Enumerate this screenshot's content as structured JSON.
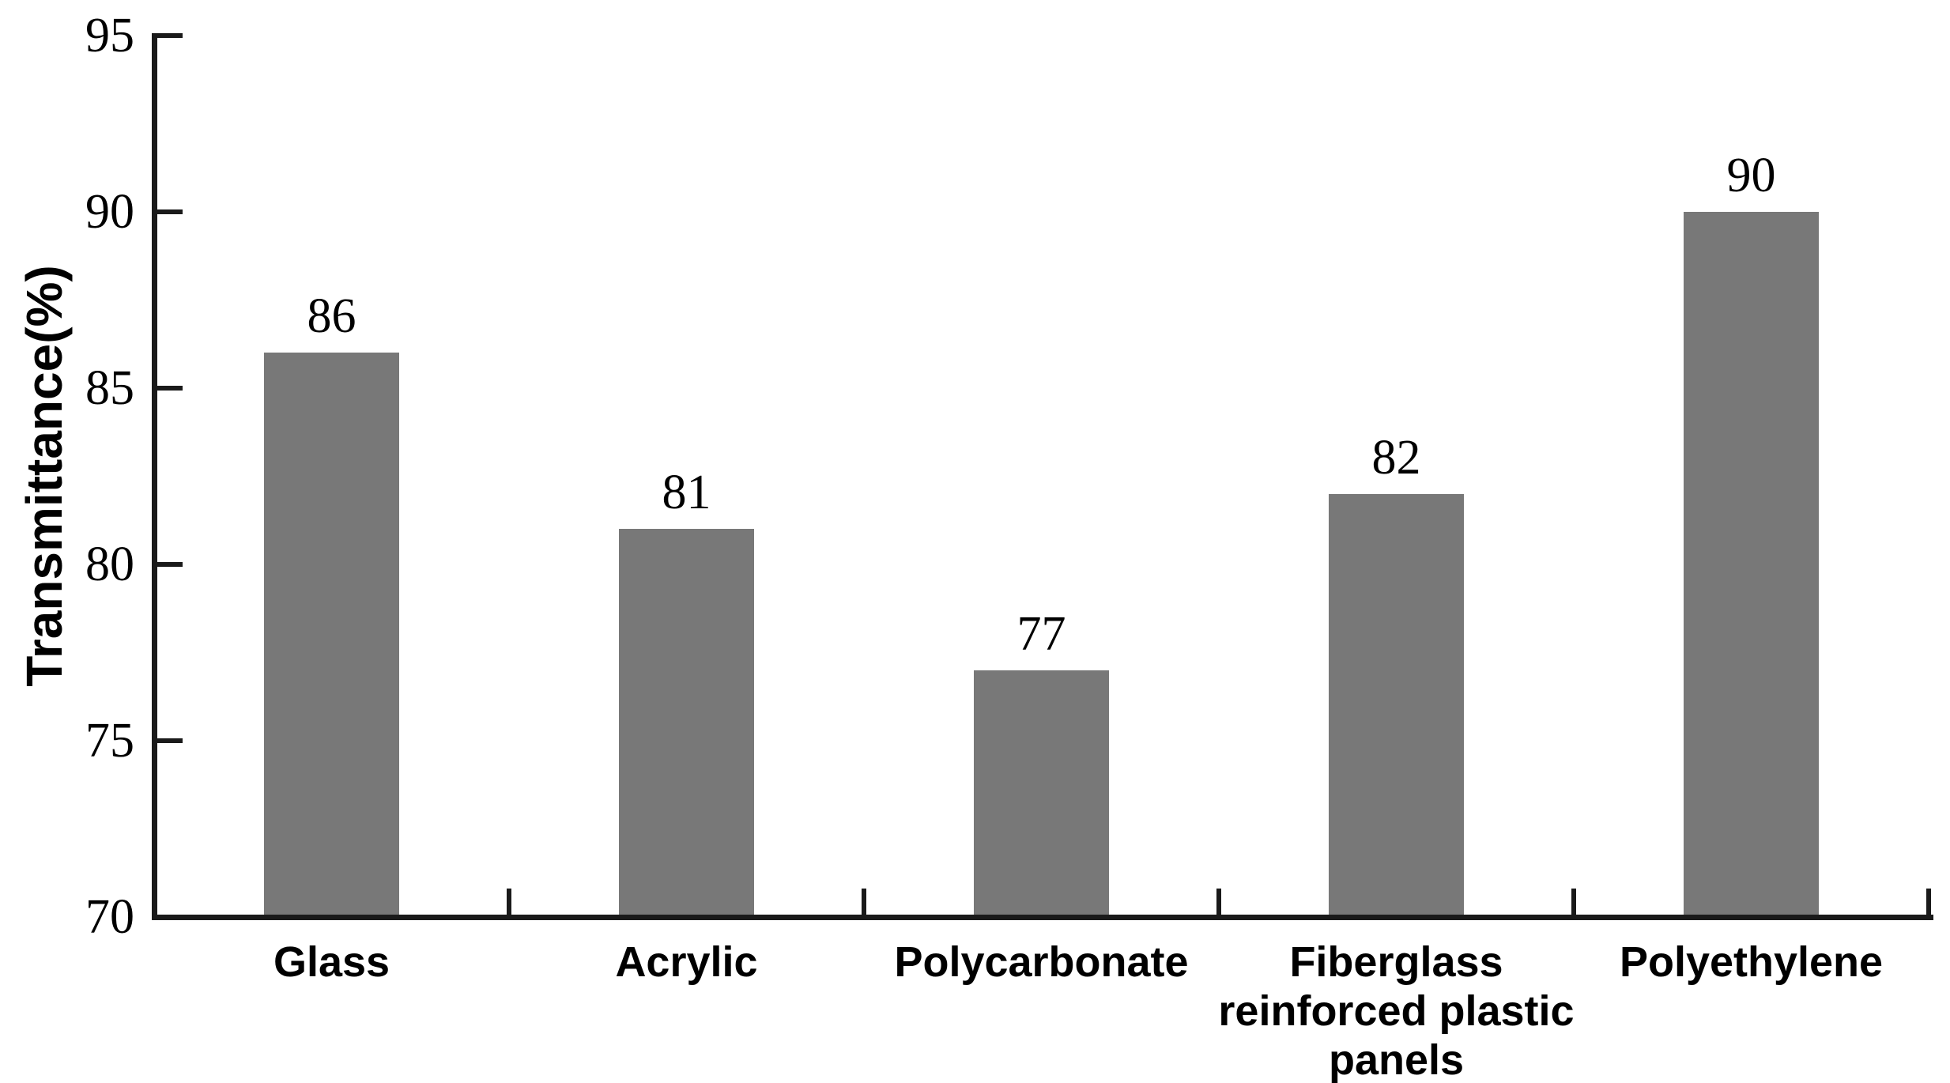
{
  "chart_data": {
    "type": "bar",
    "title": "",
    "xlabel": "",
    "ylabel": "Transmittance(%)",
    "categories": [
      "Glass",
      "Acrylic",
      "Polycarbonate",
      "Fiberglass\nreinforced plastic\npanels",
      "Polyethylene"
    ],
    "values": [
      86,
      81,
      77,
      82,
      90
    ],
    "data_labels": [
      "86",
      "81",
      "77",
      "82",
      "90"
    ],
    "ylim": [
      70,
      95
    ],
    "yticks": [
      70,
      75,
      80,
      85,
      90,
      95
    ],
    "ytick_labels": [
      "70",
      "75",
      "80",
      "85",
      "90",
      "95"
    ],
    "grid": false,
    "legend": "none",
    "bar_color": "#787878"
  },
  "colors": {
    "bar": "#787878",
    "axis": "#1a1a1a",
    "text": "#000000",
    "background": "#ffffff"
  }
}
